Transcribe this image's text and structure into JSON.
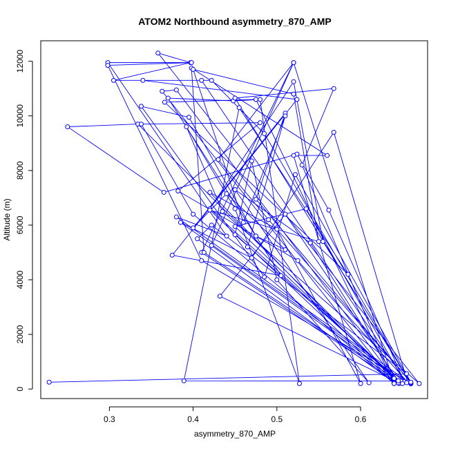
{
  "chart_data": {
    "type": "line",
    "title": "ATOM2 Northbound asymmetry_870_AMP",
    "xlabel": "asymmetry_870_AMP",
    "ylabel": "Altitude (m)",
    "xlim": [
      0.218,
      0.68
    ],
    "ylim": [
      -350,
      12750
    ],
    "xticks": [
      0.3,
      0.4,
      0.5,
      0.6
    ],
    "yticks": [
      0,
      2000,
      4000,
      6000,
      8000,
      10000,
      12000
    ],
    "grid": false,
    "legend": "none",
    "series": [
      {
        "color": "#0000ff",
        "marker": "open-circle",
        "points": [
          [
            0.228,
            250
          ],
          [
            0.655,
            560
          ],
          [
            0.422,
            6000
          ],
          [
            0.405,
            5500
          ],
          [
            0.64,
            230
          ],
          [
            0.363,
            10900
          ],
          [
            0.38,
            10950
          ],
          [
            0.64,
            390
          ],
          [
            0.334,
            9700
          ],
          [
            0.25,
            9600
          ],
          [
            0.365,
            7200
          ],
          [
            0.524,
            8600
          ],
          [
            0.562,
            6550
          ],
          [
            0.652,
            270
          ],
          [
            0.535,
            6600
          ],
          [
            0.45,
            5950
          ],
          [
            0.646,
            200
          ],
          [
            0.41,
            5000
          ],
          [
            0.52,
            11950
          ],
          [
            0.422,
            5250
          ],
          [
            0.648,
            290
          ],
          [
            0.389,
            300
          ],
          [
            0.455,
            10300
          ],
          [
            0.585,
            4200
          ],
          [
            0.366,
            10500
          ],
          [
            0.475,
            10600
          ],
          [
            0.64,
            200
          ],
          [
            0.4,
            6400
          ],
          [
            0.338,
            9700
          ],
          [
            0.48,
            9750
          ],
          [
            0.382,
            7250
          ],
          [
            0.525,
            4700
          ],
          [
            0.656,
            260
          ],
          [
            0.568,
            9400
          ],
          [
            0.47,
            4800
          ],
          [
            0.385,
            6100
          ],
          [
            0.655,
            230
          ],
          [
            0.41,
            11300
          ],
          [
            0.34,
            11300
          ],
          [
            0.524,
            10600
          ],
          [
            0.375,
            4900
          ],
          [
            0.505,
            4150
          ],
          [
            0.37,
            10650
          ],
          [
            0.448,
            10550
          ],
          [
            0.48,
            10600
          ],
          [
            0.527,
            200
          ],
          [
            0.45,
            6600
          ],
          [
            0.392,
            9600
          ],
          [
            0.435,
            6500
          ],
          [
            0.67,
            200
          ],
          [
            0.358,
            12300
          ],
          [
            0.397,
            11950
          ],
          [
            0.305,
            11300
          ],
          [
            0.422,
            11300
          ],
          [
            0.485,
            9350
          ],
          [
            0.66,
            190
          ],
          [
            0.38,
            6300
          ],
          [
            0.44,
            5600
          ],
          [
            0.298,
            11950
          ],
          [
            0.398,
            11950
          ],
          [
            0.298,
            11850
          ],
          [
            0.41,
            4700
          ],
          [
            0.66,
            200
          ],
          [
            0.45,
            10650
          ],
          [
            0.568,
            11000
          ],
          [
            0.53,
            8200
          ],
          [
            0.64,
            230
          ],
          [
            0.42,
            7200
          ],
          [
            0.5,
            5850
          ],
          [
            0.6,
            200
          ],
          [
            0.52,
            8550
          ],
          [
            0.56,
            8550
          ],
          [
            0.398,
            11750
          ],
          [
            0.413,
            5000
          ],
          [
            0.65,
            200
          ],
          [
            0.45,
            5650
          ],
          [
            0.47,
            8350
          ],
          [
            0.5,
            4000
          ],
          [
            0.61,
            230
          ],
          [
            0.45,
            7300
          ],
          [
            0.54,
            5350
          ],
          [
            0.645,
            230
          ],
          [
            0.432,
            3400
          ],
          [
            0.51,
            6400
          ],
          [
            0.645,
            300
          ],
          [
            0.42,
            6600
          ],
          [
            0.52,
            11250
          ],
          [
            0.555,
            5400
          ],
          [
            0.66,
            230
          ],
          [
            0.475,
            6950
          ],
          [
            0.51,
            10100
          ],
          [
            0.4,
            5900
          ],
          [
            0.44,
            7150
          ],
          [
            0.51,
            5100
          ],
          [
            0.475,
            5600
          ],
          [
            0.395,
            9950
          ],
          [
            0.338,
            10350
          ],
          [
            0.485,
            4100
          ],
          [
            0.522,
            7850
          ],
          [
            0.66,
            250
          ],
          [
            0.49,
            6200
          ],
          [
            0.43,
            8400
          ],
          [
            0.52,
            11950
          ],
          [
            0.64,
            200
          ],
          [
            0.42,
            6550
          ],
          [
            0.55,
            5400
          ],
          [
            0.52,
            10800
          ],
          [
            0.4,
            11700
          ],
          [
            0.46,
            6100
          ],
          [
            0.51,
            10000
          ],
          [
            0.465,
            5200
          ]
        ]
      }
    ]
  }
}
